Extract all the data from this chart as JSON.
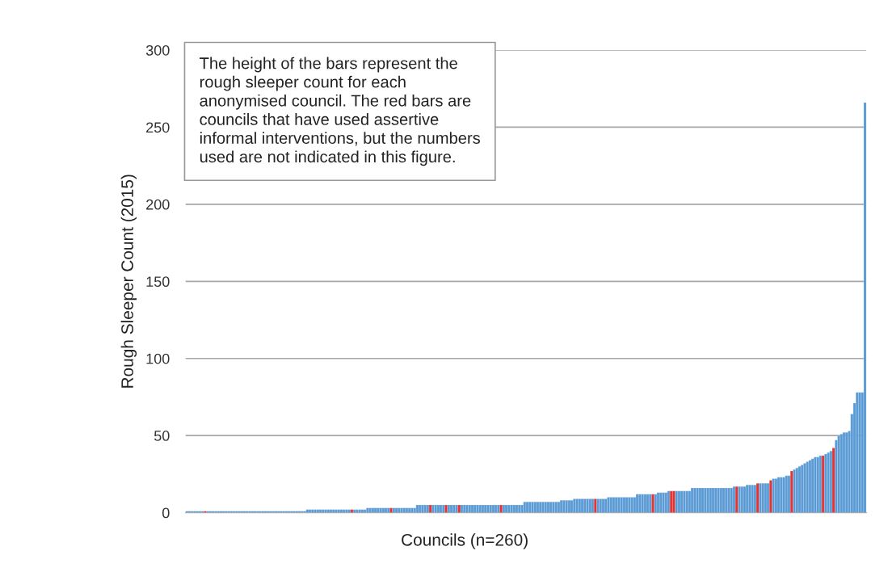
{
  "chart_data": {
    "type": "bar",
    "xlabel": "Councils (n=260)",
    "ylabel": "Rough Sleeper Count (2015)",
    "annotations": [
      "The height of the bars represent the\nrough sleeper count for each\nanonymised council. The red bars are\ncouncils that have used assertive\ninformal interventions, but the numbers\nused are not indicated in this figure."
    ],
    "categories": [
      null,
      null,
      null,
      null,
      null,
      null,
      null,
      null,
      null,
      null,
      null,
      null,
      null,
      null,
      null,
      null,
      null,
      null,
      null,
      null,
      null,
      null,
      null,
      null,
      null,
      null,
      null,
      null,
      null,
      null,
      null,
      null,
      null,
      null,
      null,
      null,
      null,
      null,
      null,
      null,
      null,
      null,
      null,
      null,
      null,
      null,
      null,
      null,
      null,
      null,
      null,
      null,
      null,
      null,
      null,
      null,
      null,
      null,
      null,
      null,
      null,
      null,
      null,
      null,
      null,
      null,
      null,
      null,
      null,
      null,
      null,
      null,
      null,
      null,
      null,
      null,
      null,
      null,
      null,
      null,
      null,
      null,
      null,
      null,
      null,
      null,
      null,
      null,
      null,
      null,
      null,
      null,
      null,
      null,
      null,
      null,
      null,
      null,
      null,
      null,
      null,
      null,
      null,
      null,
      null,
      null,
      null,
      null,
      null,
      null,
      null,
      null,
      null,
      null,
      null,
      null,
      null,
      null,
      null,
      null,
      null,
      null,
      null,
      null,
      null,
      null,
      null,
      null,
      null,
      null,
      null,
      null,
      null,
      null,
      null,
      null,
      null,
      null,
      null,
      null,
      null,
      null,
      null,
      null,
      null,
      null,
      null,
      null,
      null,
      null,
      null,
      null,
      null,
      null,
      null,
      null,
      null,
      null,
      null,
      null,
      null,
      null,
      null,
      null,
      null,
      null,
      null,
      null,
      null,
      null,
      null,
      null,
      null,
      null,
      null,
      null,
      null,
      null,
      null,
      null,
      null,
      null,
      null,
      null,
      null,
      null,
      null,
      null,
      null,
      null,
      null,
      null,
      null,
      null,
      null,
      null,
      null,
      null,
      null,
      null,
      null,
      null,
      null,
      null,
      null,
      null,
      null,
      null,
      null,
      null,
      null,
      null,
      null,
      null,
      null,
      null,
      null,
      null,
      null,
      null,
      null,
      null,
      null,
      null,
      null,
      null,
      null,
      null,
      null,
      null,
      null,
      null,
      null,
      null,
      null,
      null,
      null,
      null,
      null,
      null,
      null,
      null,
      null,
      null,
      null,
      null,
      null,
      null,
      null,
      null,
      null,
      null,
      null,
      null,
      null,
      null,
      null,
      null,
      null,
      null
    ],
    "values": [
      1,
      1,
      1,
      1,
      1,
      1,
      1,
      1,
      1,
      1,
      1,
      1,
      1,
      1,
      1,
      1,
      1,
      1,
      1,
      1,
      1,
      1,
      1,
      1,
      1,
      1,
      1,
      1,
      1,
      1,
      1,
      1,
      1,
      1,
      1,
      1,
      1,
      1,
      1,
      1,
      1,
      1,
      1,
      1,
      1,
      1,
      2,
      2,
      2,
      2,
      2,
      2,
      2,
      2,
      2,
      2,
      2,
      2,
      2,
      2,
      2,
      2,
      2,
      2,
      2,
      2,
      2,
      2,
      2,
      3,
      3,
      3,
      3,
      3,
      3,
      3,
      3,
      3,
      3,
      3,
      3,
      3,
      3,
      3,
      3,
      3,
      3,
      3,
      5,
      5,
      5,
      5,
      5,
      5,
      5,
      5,
      5,
      5,
      5,
      5,
      5,
      5,
      5,
      5,
      5,
      5,
      5,
      5,
      5,
      5,
      5,
      5,
      5,
      5,
      5,
      5,
      5,
      5,
      5,
      5,
      5,
      5,
      5,
      5,
      5,
      5,
      5,
      5,
      5,
      7,
      7,
      7,
      7,
      7,
      7,
      7,
      7,
      7,
      7,
      7,
      7,
      7,
      7,
      8,
      8,
      8,
      8,
      8,
      9,
      9,
      9,
      9,
      9,
      9,
      9,
      9,
      9,
      9,
      9,
      9,
      9,
      10,
      10,
      10,
      10,
      10,
      10,
      10,
      10,
      10,
      10,
      10,
      12,
      12,
      12,
      12,
      12,
      12,
      12,
      12,
      13,
      13,
      13,
      13,
      14,
      14,
      14,
      14,
      14,
      14,
      14,
      14,
      14,
      16,
      16,
      16,
      16,
      16,
      16,
      16,
      16,
      16,
      16,
      16,
      16,
      16,
      16,
      16,
      16,
      17,
      17,
      17,
      17,
      17,
      18,
      18,
      18,
      18,
      19,
      19,
      19,
      19,
      19,
      21,
      22,
      22,
      23,
      23,
      23,
      24,
      24,
      27,
      28,
      29,
      30,
      31,
      32,
      33,
      34,
      35,
      36,
      36,
      37,
      37,
      38,
      39,
      40,
      42,
      47,
      50,
      51,
      52,
      52,
      53,
      64,
      71,
      78,
      78,
      78,
      266
    ],
    "colors": [
      "#5b9bd5",
      "#5b9bd5",
      "#5b9bd5",
      "#5b9bd5",
      "#5b9bd5",
      "#5b9bd5",
      "#5b9bd5",
      "#e8312f",
      "#5b9bd5",
      "#5b9bd5",
      "#5b9bd5",
      "#5b9bd5",
      "#5b9bd5",
      "#5b9bd5",
      "#5b9bd5",
      "#5b9bd5",
      "#5b9bd5",
      "#5b9bd5",
      "#5b9bd5",
      "#5b9bd5",
      "#5b9bd5",
      "#5b9bd5",
      "#5b9bd5",
      "#5b9bd5",
      "#5b9bd5",
      "#5b9bd5",
      "#5b9bd5",
      "#5b9bd5",
      "#5b9bd5",
      "#5b9bd5",
      "#5b9bd5",
      "#5b9bd5",
      "#5b9bd5",
      "#5b9bd5",
      "#5b9bd5",
      "#5b9bd5",
      "#5b9bd5",
      "#5b9bd5",
      "#5b9bd5",
      "#5b9bd5",
      "#5b9bd5",
      "#5b9bd5",
      "#5b9bd5",
      "#5b9bd5",
      "#5b9bd5",
      "#5b9bd5",
      "#5b9bd5",
      "#5b9bd5",
      "#5b9bd5",
      "#5b9bd5",
      "#5b9bd5",
      "#5b9bd5",
      "#5b9bd5",
      "#5b9bd5",
      "#5b9bd5",
      "#5b9bd5",
      "#5b9bd5",
      "#5b9bd5",
      "#5b9bd5",
      "#5b9bd5",
      "#5b9bd5",
      "#5b9bd5",
      "#5b9bd5",
      "#e8312f",
      "#5b9bd5",
      "#5b9bd5",
      "#5b9bd5",
      "#5b9bd5",
      "#5b9bd5",
      "#5b9bd5",
      "#5b9bd5",
      "#5b9bd5",
      "#5b9bd5",
      "#5b9bd5",
      "#5b9bd5",
      "#5b9bd5",
      "#5b9bd5",
      "#5b9bd5",
      "#e8312f",
      "#5b9bd5",
      "#5b9bd5",
      "#5b9bd5",
      "#5b9bd5",
      "#5b9bd5",
      "#5b9bd5",
      "#5b9bd5",
      "#5b9bd5",
      "#5b9bd5",
      "#5b9bd5",
      "#5b9bd5",
      "#5b9bd5",
      "#5b9bd5",
      "#5b9bd5",
      "#e8312f",
      "#5b9bd5",
      "#5b9bd5",
      "#5b9bd5",
      "#5b9bd5",
      "#5b9bd5",
      "#e8312f",
      "#5b9bd5",
      "#5b9bd5",
      "#5b9bd5",
      "#5b9bd5",
      "#e8312f",
      "#5b9bd5",
      "#5b9bd5",
      "#5b9bd5",
      "#5b9bd5",
      "#5b9bd5",
      "#5b9bd5",
      "#5b9bd5",
      "#5b9bd5",
      "#5b9bd5",
      "#5b9bd5",
      "#5b9bd5",
      "#5b9bd5",
      "#5b9bd5",
      "#5b9bd5",
      "#5b9bd5",
      "#e8312f",
      "#5b9bd5",
      "#5b9bd5",
      "#5b9bd5",
      "#5b9bd5",
      "#5b9bd5",
      "#5b9bd5",
      "#5b9bd5",
      "#5b9bd5",
      "#5b9bd5",
      "#5b9bd5",
      "#5b9bd5",
      "#5b9bd5",
      "#5b9bd5",
      "#5b9bd5",
      "#5b9bd5",
      "#5b9bd5",
      "#5b9bd5",
      "#5b9bd5",
      "#5b9bd5",
      "#5b9bd5",
      "#5b9bd5",
      "#5b9bd5",
      "#5b9bd5",
      "#5b9bd5",
      "#5b9bd5",
      "#5b9bd5",
      "#5b9bd5",
      "#5b9bd5",
      "#5b9bd5",
      "#5b9bd5",
      "#5b9bd5",
      "#5b9bd5",
      "#5b9bd5",
      "#5b9bd5",
      "#5b9bd5",
      "#e8312f",
      "#5b9bd5",
      "#5b9bd5",
      "#5b9bd5",
      "#5b9bd5",
      "#5b9bd5",
      "#5b9bd5",
      "#5b9bd5",
      "#5b9bd5",
      "#5b9bd5",
      "#5b9bd5",
      "#5b9bd5",
      "#5b9bd5",
      "#5b9bd5",
      "#5b9bd5",
      "#5b9bd5",
      "#5b9bd5",
      "#5b9bd5",
      "#5b9bd5",
      "#5b9bd5",
      "#5b9bd5",
      "#5b9bd5",
      "#e8312f",
      "#5b9bd5",
      "#5b9bd5",
      "#5b9bd5",
      "#5b9bd5",
      "#5b9bd5",
      "#5b9bd5",
      "#e8312f",
      "#e8312f",
      "#5b9bd5",
      "#5b9bd5",
      "#5b9bd5",
      "#5b9bd5",
      "#5b9bd5",
      "#5b9bd5",
      "#5b9bd5",
      "#5b9bd5",
      "#5b9bd5",
      "#5b9bd5",
      "#5b9bd5",
      "#5b9bd5",
      "#5b9bd5",
      "#5b9bd5",
      "#5b9bd5",
      "#5b9bd5",
      "#5b9bd5",
      "#5b9bd5",
      "#5b9bd5",
      "#5b9bd5",
      "#5b9bd5",
      "#5b9bd5",
      "#5b9bd5",
      "#e8312f",
      "#5b9bd5",
      "#5b9bd5",
      "#5b9bd5",
      "#5b9bd5",
      "#5b9bd5",
      "#5b9bd5",
      "#5b9bd5",
      "#e8312f",
      "#5b9bd5",
      "#5b9bd5",
      "#5b9bd5",
      "#5b9bd5",
      "#e8312f",
      "#5b9bd5",
      "#5b9bd5",
      "#5b9bd5",
      "#5b9bd5",
      "#5b9bd5",
      "#5b9bd5",
      "#5b9bd5",
      "#e8312f",
      "#5b9bd5",
      "#5b9bd5",
      "#5b9bd5",
      "#5b9bd5",
      "#5b9bd5",
      "#5b9bd5",
      "#5b9bd5",
      "#5b9bd5",
      "#5b9bd5",
      "#5b9bd5",
      "#5b9bd5",
      "#e8312f",
      "#5b9bd5",
      "#5b9bd5",
      "#5b9bd5",
      "#e8312f",
      "#5b9bd5",
      "#5b9bd5",
      "#5b9bd5",
      "#5b9bd5",
      "#5b9bd5",
      "#5b9bd5",
      "#5b9bd5",
      "#5b9bd5",
      "#5b9bd5",
      "#5b9bd5",
      "#5b9bd5",
      "#5b9bd5"
    ],
    "ylim": [
      0,
      300
    ],
    "yticks": [
      0,
      50,
      100,
      150,
      200,
      250,
      300
    ],
    "grid": "y"
  }
}
